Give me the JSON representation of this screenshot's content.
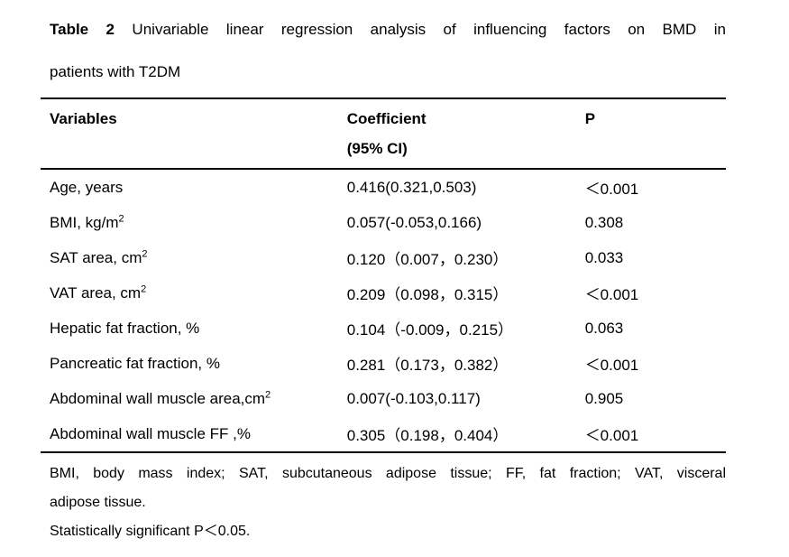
{
  "title": {
    "label_bold": "Table 2",
    "line1_rest": " Univariable linear regression analysis of influencing factors on BMD in",
    "line2": "patients with T2DM"
  },
  "table": {
    "headers": {
      "variables": "Variables",
      "coefficient_line1": "Coefficient",
      "coefficient_line2": "(95% CI)",
      "p": "P"
    },
    "rows": [
      {
        "variable": "Age, years",
        "coefficient": "0.416(0.321,0.503)",
        "p": "＜0.001"
      },
      {
        "variable": "BMI, kg/m",
        "sup": "2",
        "coefficient": "0.057(-0.053,0.166)",
        "p": "0.308"
      },
      {
        "variable": "SAT area, cm",
        "sup": "2",
        "coefficient": "0.120（0.007，0.230）",
        "p": "0.033"
      },
      {
        "variable": "VAT area, cm",
        "sup": "2",
        "coefficient": "0.209（0.098，0.315）",
        "p": "＜0.001"
      },
      {
        "variable": "Hepatic fat fraction, %",
        "coefficient": "0.104（-0.009，0.215）",
        "p": "0.063"
      },
      {
        "variable": "Pancreatic fat fraction, %",
        "coefficient": "0.281（0.173，0.382）",
        "p": "＜0.001"
      },
      {
        "variable": "Abdominal wall muscle area,cm",
        "sup": "2",
        "coefficient": "0.007(-0.103,0.117)",
        "p": "0.905"
      },
      {
        "variable": "Abdominal wall muscle FF ,%",
        "coefficient": "0.305（0.198，0.404）",
        "p": "＜0.001"
      }
    ]
  },
  "footnotes": {
    "abbrev_line1": "BMI, body mass index; SAT, subcutaneous adipose tissue; FF, fat fraction; VAT, visceral",
    "abbrev_line2": "adipose tissue.",
    "significance": "Statistically significant P＜0.05."
  }
}
